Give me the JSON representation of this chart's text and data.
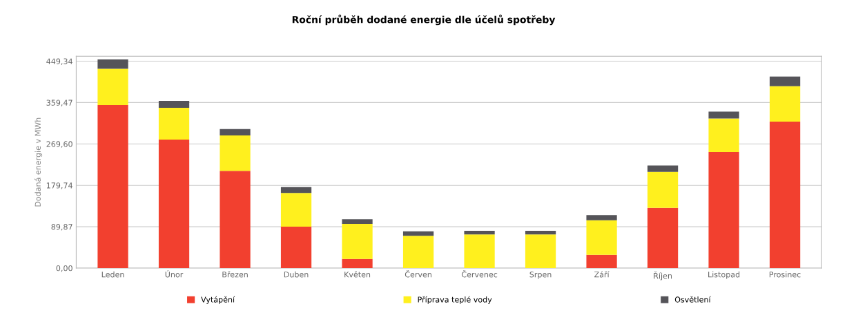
{
  "chart_data": {
    "type": "bar",
    "stacked": true,
    "title": "Roční průběh dodané energie dle účelů spotřeby",
    "ylabel": "Dodaná energie v MWh",
    "categories": [
      "Leden",
      "Únor",
      "Březen",
      "Duben",
      "Květen",
      "Červen",
      "Červenec",
      "Srpen",
      "Září",
      "Říjen",
      "Listopad",
      "Prosinec"
    ],
    "series": [
      {
        "name": "Vytápění",
        "color": "#f2402f",
        "values": [
          354,
          279,
          211,
          90,
          20,
          0,
          0,
          0,
          29,
          131,
          252,
          318
        ]
      },
      {
        "name": "Příprava teplé vody",
        "color": "#fff01e",
        "values": [
          79,
          69,
          77,
          73,
          76,
          70,
          73,
          73,
          75,
          78,
          73,
          77
        ]
      },
      {
        "name": "Osvětlení",
        "color": "#555459",
        "values": [
          20,
          15,
          14,
          13,
          10,
          10,
          8,
          8,
          11,
          14,
          15,
          21
        ]
      }
    ],
    "ylim": [
      0,
      460
    ],
    "yticks": [
      {
        "value": 0,
        "label": "0,00"
      },
      {
        "value": 89.87,
        "label": "89,87"
      },
      {
        "value": 179.74,
        "label": "179,74"
      },
      {
        "value": 269.6,
        "label": "269,60"
      },
      {
        "value": 359.47,
        "label": "359,47"
      },
      {
        "value": 449.34,
        "label": "449,34"
      }
    ],
    "grid": "y",
    "legend": "bottom"
  }
}
